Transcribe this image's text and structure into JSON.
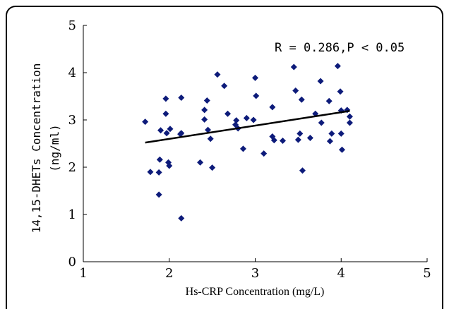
{
  "chart_data": {
    "type": "scatter",
    "xlabel": "Hs-CRP Concentration (mg/L)",
    "ylabel_line1": "14,15-DHETs Concentration",
    "ylabel_line2": "(ng/ml)",
    "annotation": "R = 0.286,P < 0.05",
    "xlim": [
      1,
      5
    ],
    "ylim": [
      0,
      5
    ],
    "xticks": [
      "1",
      "2",
      "3",
      "4",
      "5"
    ],
    "yticks": [
      "0",
      "1",
      "2",
      "3",
      "4",
      "5"
    ],
    "grid": false,
    "marker_color": "#0d1b7a",
    "trendline": {
      "x": [
        1.72,
        4.1
      ],
      "y": [
        2.52,
        3.19
      ]
    },
    "points": [
      [
        1.72,
        2.96
      ],
      [
        1.78,
        1.9
      ],
      [
        1.88,
        1.42
      ],
      [
        1.88,
        1.89
      ],
      [
        1.89,
        2.16
      ],
      [
        1.9,
        2.78
      ],
      [
        1.96,
        3.45
      ],
      [
        1.96,
        3.13
      ],
      [
        1.97,
        2.72
      ],
      [
        1.99,
        2.1
      ],
      [
        2.0,
        2.03
      ],
      [
        2.01,
        2.81
      ],
      [
        2.13,
        2.7
      ],
      [
        2.14,
        2.72
      ],
      [
        2.14,
        3.47
      ],
      [
        2.14,
        0.92
      ],
      [
        2.36,
        2.1
      ],
      [
        2.41,
        3.01
      ],
      [
        2.41,
        3.21
      ],
      [
        2.44,
        3.41
      ],
      [
        2.45,
        2.79
      ],
      [
        2.48,
        2.6
      ],
      [
        2.5,
        1.99
      ],
      [
        2.56,
        3.96
      ],
      [
        2.64,
        3.72
      ],
      [
        2.68,
        3.13
      ],
      [
        2.77,
        2.9
      ],
      [
        2.78,
        2.99
      ],
      [
        2.8,
        2.82
      ],
      [
        2.86,
        2.39
      ],
      [
        2.9,
        3.04
      ],
      [
        2.98,
        3.0
      ],
      [
        3.0,
        3.89
      ],
      [
        3.01,
        3.51
      ],
      [
        3.1,
        2.29
      ],
      [
        3.2,
        3.27
      ],
      [
        3.2,
        2.65
      ],
      [
        3.22,
        2.57
      ],
      [
        3.32,
        2.56
      ],
      [
        3.45,
        4.12
      ],
      [
        3.47,
        3.62
      ],
      [
        3.5,
        2.58
      ],
      [
        3.52,
        2.71
      ],
      [
        3.54,
        3.43
      ],
      [
        3.55,
        1.93
      ],
      [
        3.64,
        2.62
      ],
      [
        3.7,
        3.13
      ],
      [
        3.76,
        3.82
      ],
      [
        3.77,
        2.94
      ],
      [
        3.86,
        3.4
      ],
      [
        3.87,
        2.55
      ],
      [
        3.89,
        2.71
      ],
      [
        3.96,
        4.14
      ],
      [
        3.99,
        3.6
      ],
      [
        4.0,
        3.2
      ],
      [
        4.0,
        2.71
      ],
      [
        4.01,
        2.37
      ],
      [
        4.07,
        3.21
      ],
      [
        4.1,
        2.94
      ],
      [
        4.1,
        3.07
      ]
    ]
  }
}
